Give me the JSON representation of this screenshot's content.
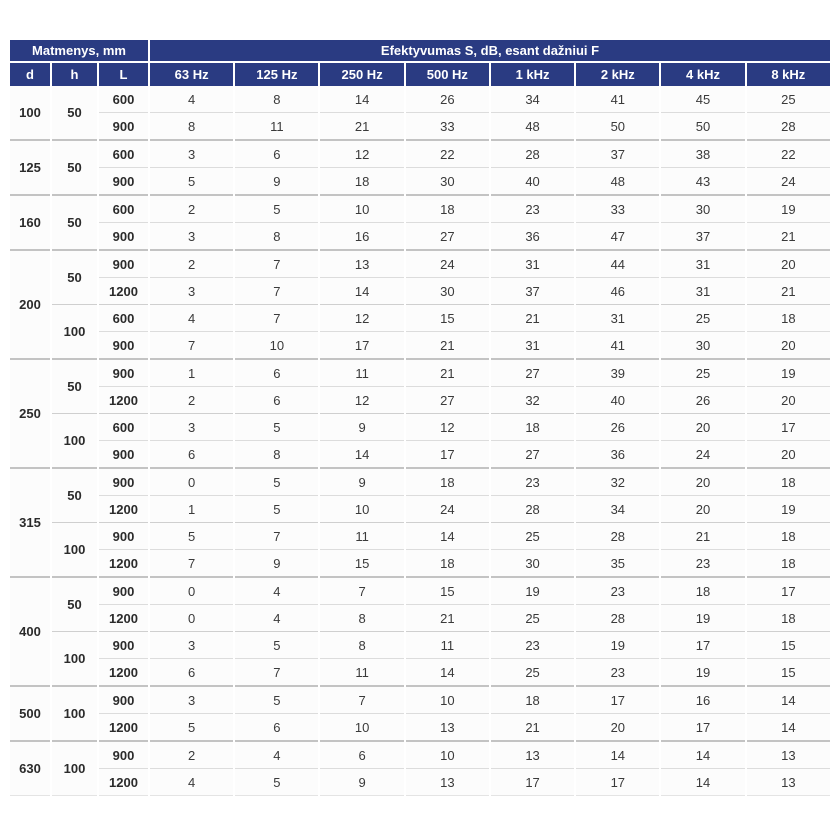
{
  "colors": {
    "header_bg": "#2a3b82",
    "header_text": "#ffffff",
    "row_border": "#dcdcdc",
    "subgroup_border": "#cfcfcf",
    "group_border": "#c3c3c3",
    "cell_bg": "#fcfcfc",
    "data_text": "#3a3a3a",
    "label_text": "#2b2b2b",
    "page_bg": "#ffffff"
  },
  "table": {
    "header": {
      "dimensions_title": "Matmenys, mm",
      "effectiveness_title": "Efektyvumas S, dB, esant dažniui F",
      "dim_columns": [
        "d",
        "h",
        "L"
      ],
      "freq_columns": [
        "63 Hz",
        "125 Hz",
        "250 Hz",
        "500 Hz",
        "1 kHz",
        "2 kHz",
        "4 kHz",
        "8 kHz"
      ]
    },
    "groups": [
      {
        "d": "100",
        "subgroups": [
          {
            "h": "50",
            "rows": [
              {
                "L": "600",
                "values": [
                  4,
                  8,
                  14,
                  26,
                  34,
                  41,
                  45,
                  25
                ]
              },
              {
                "L": "900",
                "values": [
                  8,
                  11,
                  21,
                  33,
                  48,
                  50,
                  50,
                  28
                ]
              }
            ]
          }
        ]
      },
      {
        "d": "125",
        "subgroups": [
          {
            "h": "50",
            "rows": [
              {
                "L": "600",
                "values": [
                  3,
                  6,
                  12,
                  22,
                  28,
                  37,
                  38,
                  22
                ]
              },
              {
                "L": "900",
                "values": [
                  5,
                  9,
                  18,
                  30,
                  40,
                  48,
                  43,
                  24
                ]
              }
            ]
          }
        ]
      },
      {
        "d": "160",
        "subgroups": [
          {
            "h": "50",
            "rows": [
              {
                "L": "600",
                "values": [
                  2,
                  5,
                  10,
                  18,
                  23,
                  33,
                  30,
                  19
                ]
              },
              {
                "L": "900",
                "values": [
                  3,
                  8,
                  16,
                  27,
                  36,
                  47,
                  37,
                  21
                ]
              }
            ]
          }
        ]
      },
      {
        "d": "200",
        "subgroups": [
          {
            "h": "50",
            "rows": [
              {
                "L": "900",
                "values": [
                  2,
                  7,
                  13,
                  24,
                  31,
                  44,
                  31,
                  20
                ]
              },
              {
                "L": "1200",
                "values": [
                  3,
                  7,
                  14,
                  30,
                  37,
                  46,
                  31,
                  21
                ]
              }
            ]
          },
          {
            "h": "100",
            "rows": [
              {
                "L": "600",
                "values": [
                  4,
                  7,
                  12,
                  15,
                  21,
                  31,
                  25,
                  18
                ]
              },
              {
                "L": "900",
                "values": [
                  7,
                  10,
                  17,
                  21,
                  31,
                  41,
                  30,
                  20
                ]
              }
            ]
          }
        ]
      },
      {
        "d": "250",
        "subgroups": [
          {
            "h": "50",
            "rows": [
              {
                "L": "900",
                "values": [
                  1,
                  6,
                  11,
                  21,
                  27,
                  39,
                  25,
                  19
                ]
              },
              {
                "L": "1200",
                "values": [
                  2,
                  6,
                  12,
                  27,
                  32,
                  40,
                  26,
                  20
                ]
              }
            ]
          },
          {
            "h": "100",
            "rows": [
              {
                "L": "600",
                "values": [
                  3,
                  5,
                  9,
                  12,
                  18,
                  26,
                  20,
                  17
                ]
              },
              {
                "L": "900",
                "values": [
                  6,
                  8,
                  14,
                  17,
                  27,
                  36,
                  24,
                  20
                ]
              }
            ]
          }
        ]
      },
      {
        "d": "315",
        "subgroups": [
          {
            "h": "50",
            "rows": [
              {
                "L": "900",
                "values": [
                  0,
                  5,
                  9,
                  18,
                  23,
                  32,
                  20,
                  18
                ]
              },
              {
                "L": "1200",
                "values": [
                  1,
                  5,
                  10,
                  24,
                  28,
                  34,
                  20,
                  19
                ]
              }
            ]
          },
          {
            "h": "100",
            "rows": [
              {
                "L": "900",
                "values": [
                  5,
                  7,
                  11,
                  14,
                  25,
                  28,
                  21,
                  18
                ]
              },
              {
                "L": "1200",
                "values": [
                  7,
                  9,
                  15,
                  18,
                  30,
                  35,
                  23,
                  18
                ]
              }
            ]
          }
        ]
      },
      {
        "d": "400",
        "subgroups": [
          {
            "h": "50",
            "rows": [
              {
                "L": "900",
                "values": [
                  0,
                  4,
                  7,
                  15,
                  19,
                  23,
                  18,
                  17
                ]
              },
              {
                "L": "1200",
                "values": [
                  0,
                  4,
                  8,
                  21,
                  25,
                  28,
                  19,
                  18
                ]
              }
            ]
          },
          {
            "h": "100",
            "rows": [
              {
                "L": "900",
                "values": [
                  3,
                  5,
                  8,
                  11,
                  23,
                  19,
                  17,
                  15
                ]
              },
              {
                "L": "1200",
                "values": [
                  6,
                  7,
                  11,
                  14,
                  25,
                  23,
                  19,
                  15
                ]
              }
            ]
          }
        ]
      },
      {
        "d": "500",
        "subgroups": [
          {
            "h": "100",
            "rows": [
              {
                "L": "900",
                "values": [
                  3,
                  5,
                  7,
                  10,
                  18,
                  17,
                  16,
                  14
                ]
              },
              {
                "L": "1200",
                "values": [
                  5,
                  6,
                  10,
                  13,
                  21,
                  20,
                  17,
                  14
                ]
              }
            ]
          }
        ]
      },
      {
        "d": "630",
        "subgroups": [
          {
            "h": "100",
            "rows": [
              {
                "L": "900",
                "values": [
                  2,
                  4,
                  6,
                  10,
                  13,
                  14,
                  14,
                  13
                ]
              },
              {
                "L": "1200",
                "values": [
                  4,
                  5,
                  9,
                  13,
                  17,
                  17,
                  14,
                  13
                ]
              }
            ]
          }
        ]
      }
    ]
  }
}
